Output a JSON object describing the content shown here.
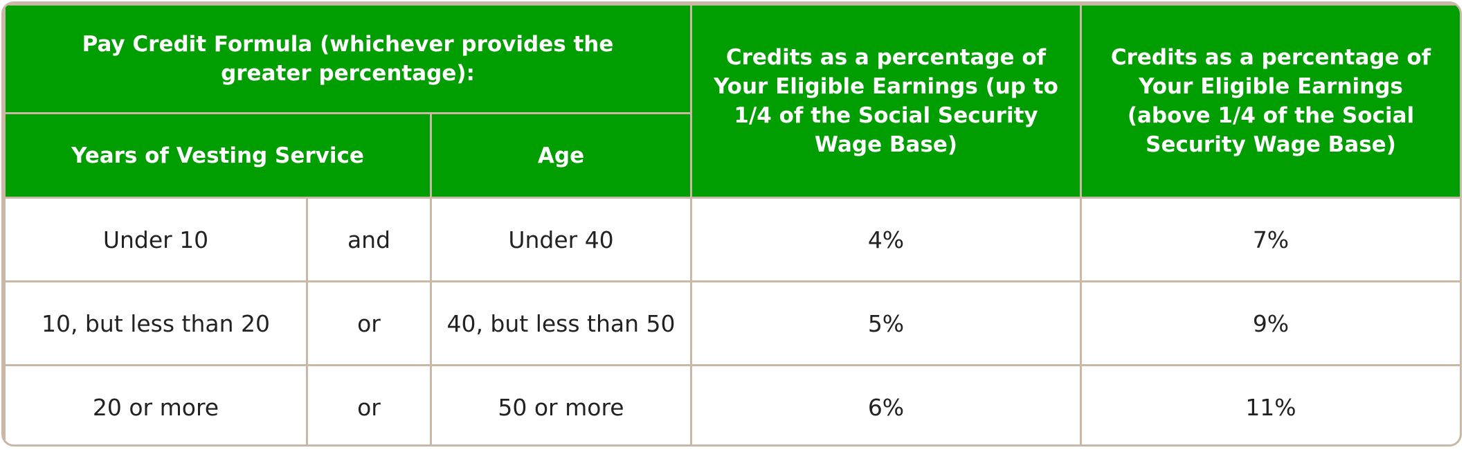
{
  "header": {
    "formula_title": "Pay Credit Formula (whichever provides the greater percentage):",
    "years_col": "Years of Vesting Service",
    "age_col": "Age",
    "credits_low_col": "Credits as a percentage of Your Eligible Earnings (up to 1/4 of the Social Security Wage Base)",
    "credits_high_col": "Credits as a percentage of Your Eligible Earnings (above 1/4 of the Social Security Wage Base)"
  },
  "rows": [
    {
      "years": "Under 10",
      "connector": "and",
      "age": "Under 40",
      "credits_low": "4%",
      "credits_high": "7%"
    },
    {
      "years": "10, but less than 20",
      "connector": "or",
      "age": "40, but less than 50",
      "credits_low": "5%",
      "credits_high": "9%"
    },
    {
      "years": "20 or more",
      "connector": "or",
      "age": "50 or more",
      "credits_low": "6%",
      "credits_high": "11%"
    }
  ],
  "colors": {
    "header_bg": "#009e00",
    "border": "#c9b8a5",
    "header_text": "#ffffff",
    "body_text": "#222222"
  }
}
